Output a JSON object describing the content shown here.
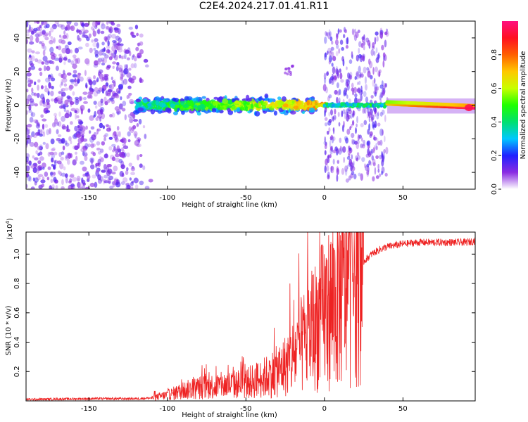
{
  "title": "C2E4.2024.217.01.41.R11",
  "chart_data": [
    {
      "type": "heatmap",
      "xlabel": "Height of straight line (km)",
      "ylabel": "Frequency (Hz)",
      "xlim": [
        -190,
        96
      ],
      "ylim": [
        -50,
        50
      ],
      "xticks": [
        -150,
        -100,
        -50,
        0,
        50
      ],
      "yticks": [
        -40,
        -20,
        0,
        20,
        40
      ],
      "colorbar": {
        "label": "Normalized spectral amplitude",
        "range": [
          0.0,
          1.0
        ],
        "ticks": [
          0.0,
          0.2,
          0.4,
          0.6,
          0.8
        ],
        "colors": [
          "#ffffff",
          "#8a2be2",
          "#2020ff",
          "#00c8ff",
          "#00e070",
          "#20ff00",
          "#c8ff00",
          "#ffc800",
          "#ff6000",
          "#ff1020",
          "#ff1080"
        ]
      },
      "regions": [
        {
          "x": [
            -190,
            -110
          ],
          "freq": [
            -50,
            50
          ],
          "amplitude": 0.05,
          "kind": "scattered noise"
        },
        {
          "x": [
            -120,
            -5
          ],
          "freq": [
            -8,
            8
          ],
          "amplitude": 0.3,
          "kind": "centered signal band"
        },
        {
          "x": [
            -25,
            -20
          ],
          "freq": [
            18,
            24
          ],
          "amplitude": 0.05,
          "kind": "isolated blob"
        },
        {
          "x": [
            -5,
            2
          ],
          "freq": [
            -3,
            3
          ],
          "amplitude": 0.55,
          "kind": "centered signal"
        },
        {
          "x": [
            0,
            40
          ],
          "freq": [
            -45,
            45
          ],
          "amplitude": 0.08,
          "kind": "striped noise block"
        },
        {
          "x": [
            0,
            40
          ],
          "freq": [
            -3,
            3
          ],
          "amplitude": 0.25,
          "kind": "centered signal"
        },
        {
          "x": [
            40,
            96
          ],
          "freq": [
            -4,
            3
          ],
          "amplitude": 0.6,
          "kind": "strong centered signal"
        }
      ]
    },
    {
      "type": "line",
      "xlabel": "Height of straight line (km)",
      "ylabel": "SNR (10 * v/v)",
      "y_multiplier": "(x10",
      "y_multiplier_exp": "4",
      "y_multiplier_close": ")",
      "xlim": [
        -190,
        96
      ],
      "ylim": [
        0.0,
        1.15
      ],
      "xticks": [
        -150,
        -100,
        -50,
        0,
        50
      ],
      "yticks": [
        0.2,
        0.4,
        0.6,
        0.8,
        1.0
      ],
      "series": [
        {
          "color": "#ee2222",
          "x": [
            -190,
            -150,
            -120,
            -110,
            -100,
            -90,
            -80,
            -70,
            -60,
            -50,
            -40,
            -30,
            -25,
            -20,
            -15,
            -10,
            -5,
            0,
            5,
            10,
            15,
            20,
            25,
            30,
            35,
            40,
            50,
            60,
            70,
            80,
            90,
            96
          ],
          "y": [
            0.01,
            0.015,
            0.015,
            0.02,
            0.04,
            0.07,
            0.09,
            0.1,
            0.11,
            0.12,
            0.15,
            0.2,
            0.24,
            0.3,
            0.37,
            0.45,
            0.52,
            0.6,
            0.65,
            0.72,
            0.8,
            0.88,
            0.95,
            1.0,
            1.03,
            1.05,
            1.07,
            1.08,
            1.08,
            1.08,
            1.08,
            1.09
          ]
        }
      ]
    }
  ]
}
